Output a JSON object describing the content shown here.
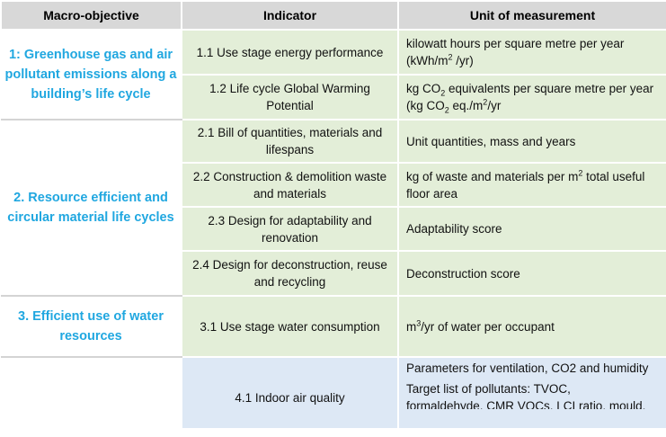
{
  "headers": {
    "macro": "Macro-objective",
    "indicator": "Indicator",
    "unit": "Unit of measurement"
  },
  "macro_objectives": {
    "m1": "1: Greenhouse gas and air pollutant emissions along a building’s life cycle",
    "m2": "2. Resource efficient and circular material life cycles",
    "m3": "3. Efficient use of water resources",
    "m4": ""
  },
  "rows": [
    {
      "indicator": "1.1  Use stage energy performance",
      "unit_pre": "kilowatt hours per square metre per year (kWh/m",
      "unit_sup": "2",
      "unit_post": " /yr)"
    },
    {
      "indicator": "1.2 Life cycle Global Warming Potential",
      "unit_a": "kg CO",
      "unit_sub": "2",
      "unit_b": " equivalents per square metre per year (kg CO",
      "unit_sub2": "2",
      "unit_c": " eq./m",
      "unit_sup": "2",
      "unit_d": "/yr"
    },
    {
      "indicator": "2.1 Bill of quantities, materials and lifespans",
      "unit": "Unit quantities, mass and years"
    },
    {
      "indicator": "2.2 Construction & demolition waste and materials",
      "unit_pre": "kg of waste and materials per m",
      "unit_sup": "2",
      "unit_post": " total useful floor area"
    },
    {
      "indicator": "2.3 Design for adaptability and renovation",
      "unit": "Adaptability score"
    },
    {
      "indicator": "2.4 Design for deconstruction, reuse and recycling",
      "unit": "Deconstruction score"
    },
    {
      "indicator": "3.1 Use stage water consumption",
      "unit_pre": "m",
      "unit_sup": "3",
      "unit_post": "/yr of water per occupant"
    },
    {
      "indicator": "4.1  Indoor air quality",
      "unit_line1": "Parameters for ventilation, CO2 and humidity",
      "unit_line2": "Target list of pollutants: TVOC,",
      "unit_line3": "formaldehyde, CMR VOCs, LCI ratio, mould,"
    }
  ],
  "colors": {
    "header_bg": "#d8d8d8",
    "macro_text": "#20a7e0",
    "green_cell": "#e3eed8",
    "blue_cell": "#dde8f5"
  }
}
